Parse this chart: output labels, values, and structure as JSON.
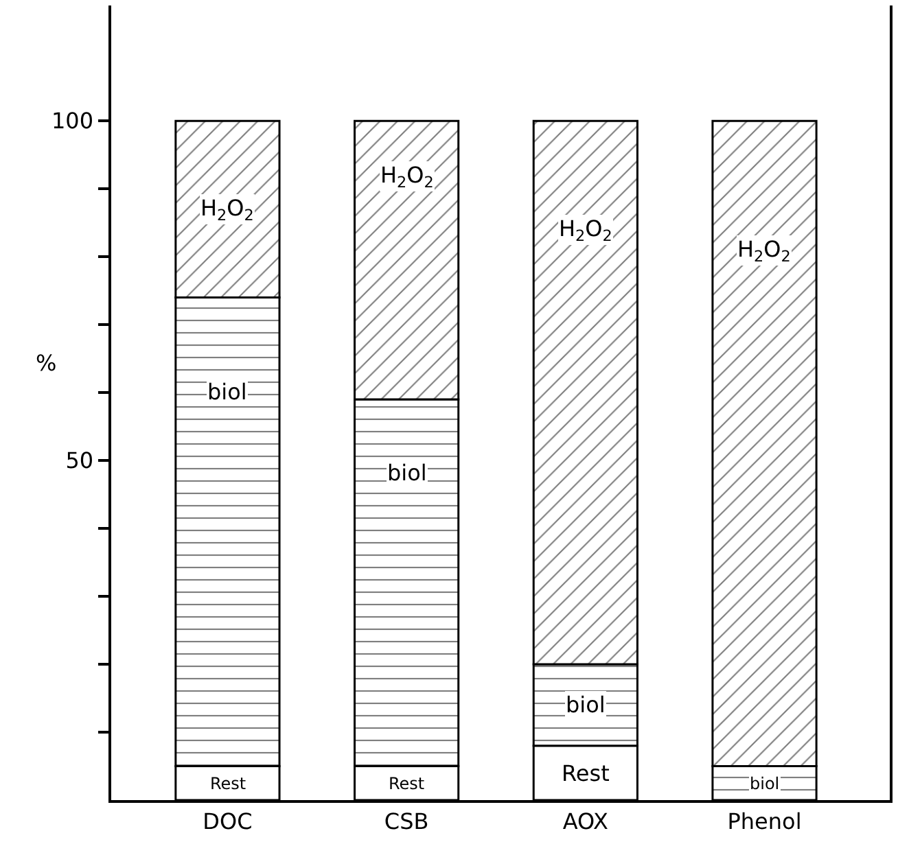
{
  "chart_data": {
    "type": "bar",
    "stacked": true,
    "ylabel": "%",
    "categories": [
      "DOC",
      "CSB",
      "AOX",
      "Phenol"
    ],
    "series": [
      {
        "name": "Rest",
        "color": "#ffffff",
        "values": [
          5,
          5,
          8,
          null
        ]
      },
      {
        "name": "biol",
        "color": "#000000",
        "values": [
          69,
          54,
          12,
          5
        ]
      },
      {
        "name": "H$_{2}$O$_{2}$",
        "color": "#000000",
        "values": [
          26,
          41,
          80,
          95
        ]
      }
    ],
    "ylim": [
      0,
      117
    ],
    "yticks": [
      {
        "value": 10,
        "label": null
      },
      {
        "value": 20,
        "label": null
      },
      {
        "value": 30,
        "label": null
      },
      {
        "value": 40,
        "label": null
      },
      50,
      {
        "value": 60,
        "label": null
      },
      {
        "value": 70,
        "label": null
      },
      {
        "value": 80,
        "label": null
      },
      {
        "value": 90,
        "label": null
      },
      100
    ],
    "legend": false
  }
}
